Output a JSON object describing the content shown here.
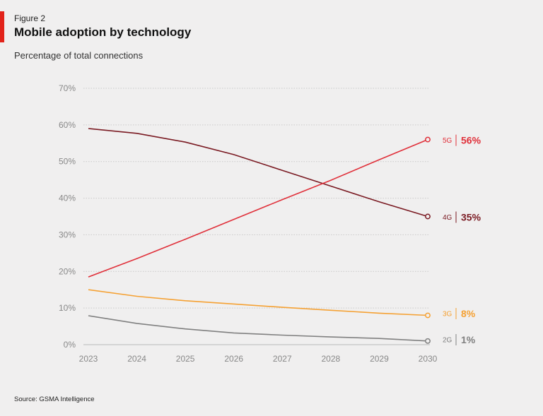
{
  "figure_label": "Figure 2",
  "title": "Mobile adoption by technology",
  "subtitle": "Percentage of total connections",
  "source": "Source: GSMA Intelligence",
  "colors": {
    "accent": "#e2231a",
    "grid": "#c9c9c9",
    "tick_text": "#888888",
    "5G": "#e0303a",
    "4G": "#7a1a22",
    "3G": "#f5a133",
    "2G": "#808080"
  },
  "chart_data": {
    "type": "line",
    "title": "Mobile adoption by technology",
    "ylabel": "Percentage of total connections",
    "xlabel": "",
    "x": [
      2023,
      2024,
      2025,
      2026,
      2027,
      2028,
      2029,
      2030
    ],
    "ylim": [
      0,
      70
    ],
    "yticks": [
      0,
      10,
      20,
      30,
      40,
      50,
      60,
      70
    ],
    "ytick_labels": [
      "0%",
      "10%",
      "20%",
      "30%",
      "40%",
      "50%",
      "60%",
      "70%"
    ],
    "xtick_labels": [
      "2023",
      "2024",
      "2025",
      "2026",
      "2027",
      "2028",
      "2029",
      "2030"
    ],
    "grid": true,
    "legend": "end-of-line labels",
    "series": [
      {
        "name": "4G",
        "color": "#7a1a22",
        "values": [
          59,
          57.7,
          55.3,
          51.9,
          47.6,
          43.3,
          39,
          35
        ],
        "end_label": "35%"
      },
      {
        "name": "5G",
        "color": "#e0303a",
        "values": [
          18.5,
          23.5,
          28.8,
          34.2,
          39.6,
          44.9,
          50.5,
          56
        ],
        "end_label": "56%"
      },
      {
        "name": "3G",
        "color": "#f5a133",
        "values": [
          15,
          13.2,
          12,
          11.1,
          10.2,
          9.4,
          8.6,
          8
        ],
        "end_label": "8%"
      },
      {
        "name": "2G",
        "color": "#808080",
        "values": [
          7.9,
          5.8,
          4.3,
          3.2,
          2.6,
          2.1,
          1.7,
          1
        ],
        "end_label": "1%"
      }
    ]
  }
}
